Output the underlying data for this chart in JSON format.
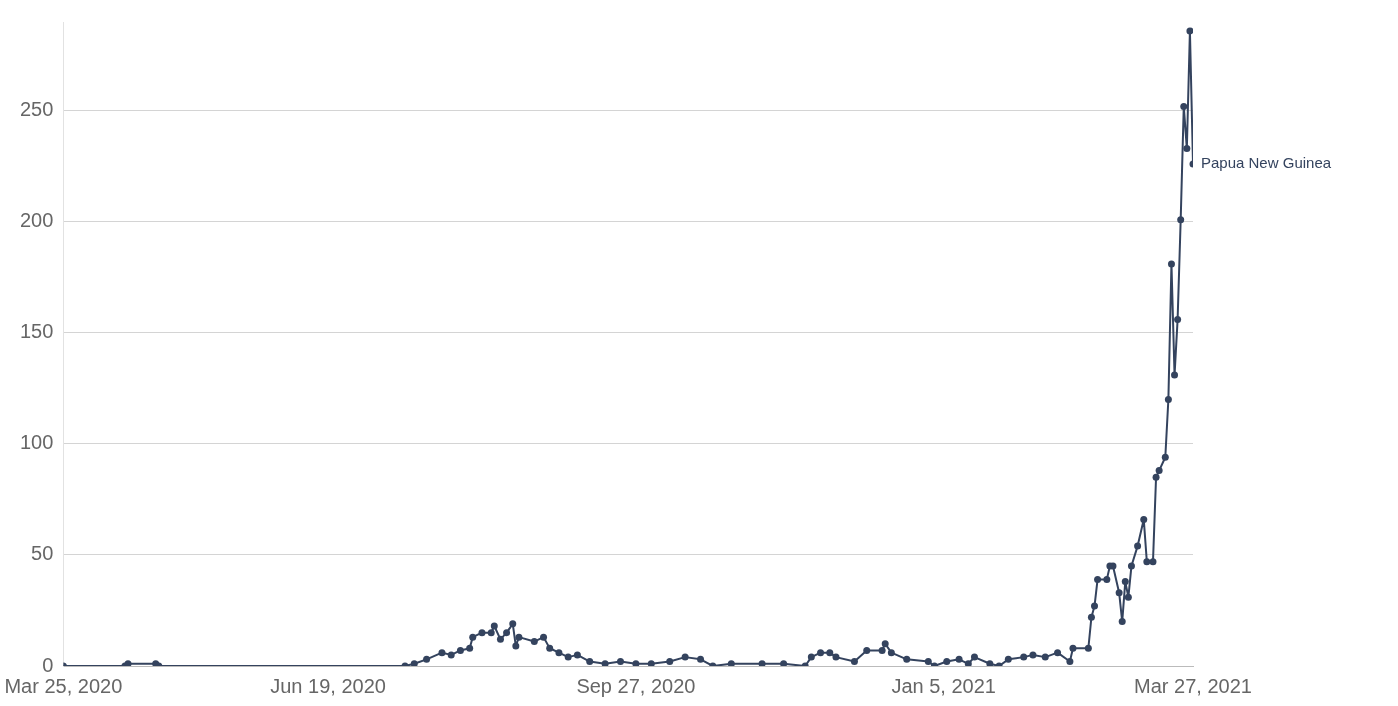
{
  "chart_data": {
    "type": "line",
    "x": [
      "2020-03-25",
      "2020-04-14",
      "2020-04-15",
      "2020-04-24",
      "2020-04-25",
      "2020-07-14",
      "2020-07-17",
      "2020-07-21",
      "2020-07-26",
      "2020-07-29",
      "2020-08-01",
      "2020-08-04",
      "2020-08-05",
      "2020-08-08",
      "2020-08-11",
      "2020-08-12",
      "2020-08-14",
      "2020-08-16",
      "2020-08-18",
      "2020-08-19",
      "2020-08-20",
      "2020-08-25",
      "2020-08-28",
      "2020-08-30",
      "2020-09-02",
      "2020-09-05",
      "2020-09-08",
      "2020-09-12",
      "2020-09-17",
      "2020-09-22",
      "2020-09-27",
      "2020-10-02",
      "2020-10-08",
      "2020-10-13",
      "2020-10-18",
      "2020-10-22",
      "2020-10-28",
      "2020-11-07",
      "2020-11-14",
      "2020-11-21",
      "2020-11-23",
      "2020-11-26",
      "2020-11-29",
      "2020-12-01",
      "2020-12-07",
      "2020-12-11",
      "2020-12-16",
      "2020-12-17",
      "2020-12-19",
      "2020-12-24",
      "2020-12-31",
      "2021-01-02",
      "2021-01-06",
      "2021-01-10",
      "2021-01-13",
      "2021-01-15",
      "2021-01-20",
      "2021-01-23",
      "2021-01-26",
      "2021-01-31",
      "2021-02-03",
      "2021-02-07",
      "2021-02-11",
      "2021-02-15",
      "2021-02-16",
      "2021-02-21",
      "2021-02-22",
      "2021-02-23",
      "2021-02-24",
      "2021-02-27",
      "2021-02-28",
      "2021-03-01",
      "2021-03-03",
      "2021-03-04",
      "2021-03-05",
      "2021-03-06",
      "2021-03-07",
      "2021-03-09",
      "2021-03-11",
      "2021-03-12",
      "2021-03-14",
      "2021-03-15",
      "2021-03-16",
      "2021-03-18",
      "2021-03-19",
      "2021-03-20",
      "2021-03-21",
      "2021-03-22",
      "2021-03-23",
      "2021-03-24",
      "2021-03-25",
      "2021-03-26",
      "2021-03-27"
    ],
    "series": [
      {
        "name": "Papua New Guinea",
        "color": "#34435e",
        "values": [
          0,
          0,
          1,
          1,
          0,
          0,
          1,
          3,
          6,
          5,
          7,
          8,
          13,
          15,
          15,
          18,
          12,
          15,
          19,
          9,
          13,
          11,
          13,
          8,
          6,
          4,
          5,
          2,
          1,
          2,
          1,
          1,
          2,
          4,
          3,
          0,
          1,
          1,
          1,
          0,
          4,
          6,
          6,
          4,
          2,
          7,
          7,
          10,
          6,
          3,
          2,
          0,
          2,
          3,
          1,
          4,
          1,
          0,
          3,
          4,
          5,
          4,
          6,
          2,
          8,
          8,
          22,
          27,
          39,
          39,
          45,
          45,
          33,
          20,
          38,
          31,
          45,
          54,
          66,
          47,
          47,
          85,
          88,
          94,
          120,
          181,
          131,
          156,
          201,
          252,
          233,
          286,
          226
        ]
      }
    ],
    "xlim": [
      "2020-03-25",
      "2021-03-27"
    ],
    "xticks": [
      {
        "value": "2020-03-25",
        "label": "Mar 25, 2020"
      },
      {
        "value": "2020-06-19",
        "label": "Jun 19, 2020"
      },
      {
        "value": "2020-09-27",
        "label": "Sep 27, 2020"
      },
      {
        "value": "2021-01-05",
        "label": "Jan 5, 2021"
      },
      {
        "value": "2021-03-27",
        "label": "Mar 27, 2021"
      }
    ],
    "ylim": [
      0,
      290
    ],
    "yticks": [
      0,
      50,
      100,
      150,
      200,
      250
    ],
    "grid": "y",
    "legend": false,
    "marker": "circle",
    "line_style": "solid"
  }
}
